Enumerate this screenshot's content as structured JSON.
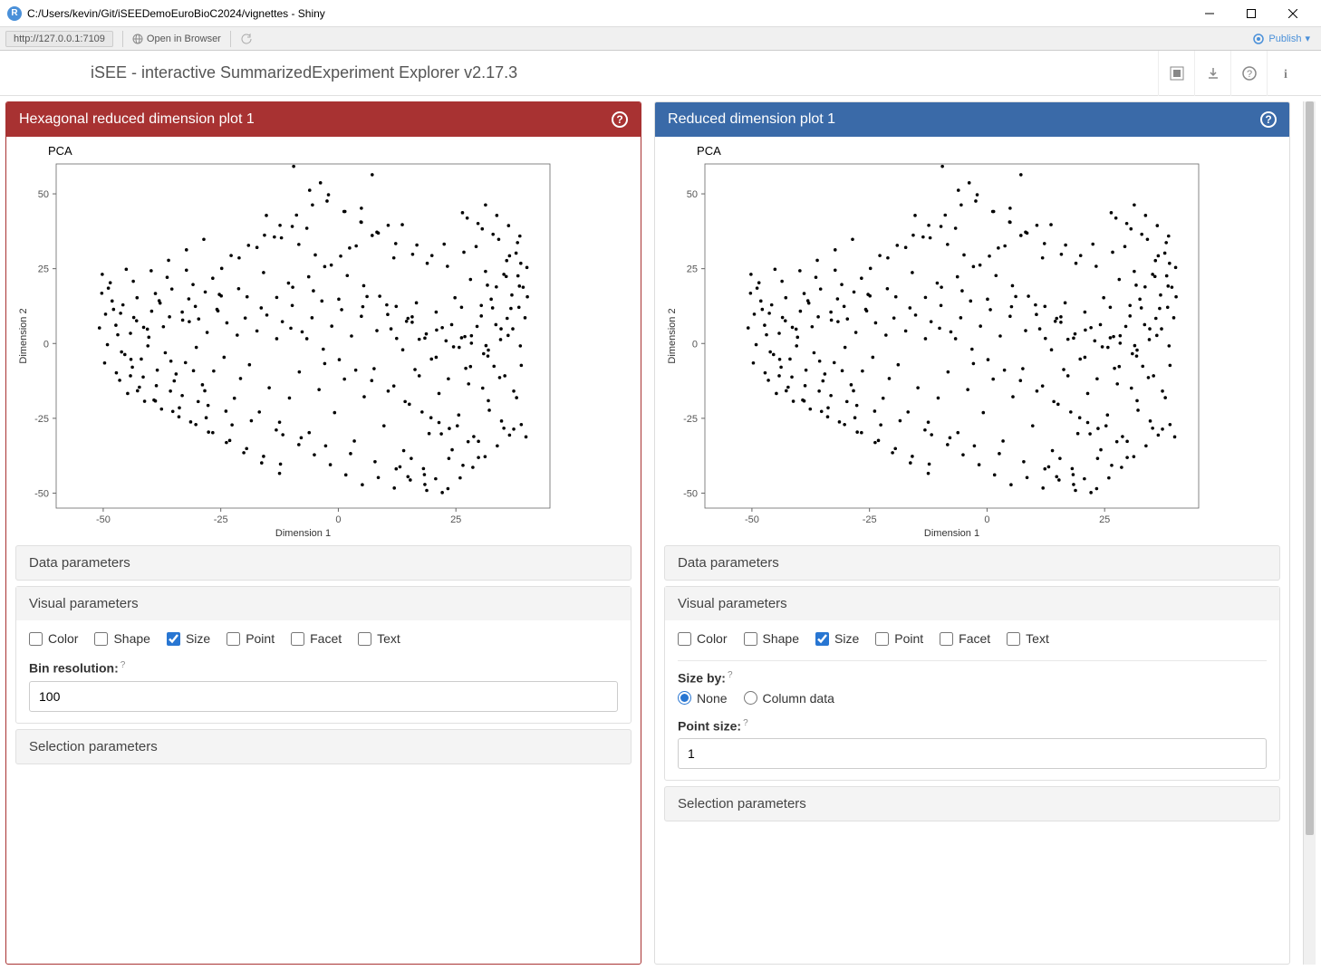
{
  "window": {
    "title": "C:/Users/kevin/Git/iSEEDemoEuroBioC2024/vignettes - Shiny"
  },
  "toolbar": {
    "url": "http://127.0.0.1:7109",
    "open_browser": "Open in Browser",
    "publish": "Publish"
  },
  "header": {
    "app_title": "iSEE - interactive SummarizedExperiment Explorer v2.17.3"
  },
  "panel_left": {
    "title": "Hexagonal reduced dimension plot 1",
    "header_color": "#a83232",
    "plot": {
      "title": "PCA",
      "xlabel": "Dimension 1",
      "ylabel": "Dimension 2",
      "xlim": [
        -60,
        45
      ],
      "ylim": [
        -55,
        60
      ],
      "xticks": [
        -50,
        -25,
        0,
        25
      ],
      "yticks": [
        -50,
        -25,
        0,
        25,
        50
      ],
      "background": "#ffffff",
      "border_color": "#666666",
      "point_color": "#000000",
      "point_radius": 1.8,
      "tick_fontsize": 11,
      "label_fontsize": 11
    },
    "sections": {
      "data_params": "Data parameters",
      "visual_params": "Visual parameters",
      "selection_params": "Selection parameters"
    },
    "visual": {
      "checkboxes": [
        {
          "label": "Color",
          "checked": false
        },
        {
          "label": "Shape",
          "checked": false
        },
        {
          "label": "Size",
          "checked": true
        },
        {
          "label": "Point",
          "checked": false
        },
        {
          "label": "Facet",
          "checked": false
        },
        {
          "label": "Text",
          "checked": false
        }
      ],
      "bin_resolution_label": "Bin resolution:",
      "bin_resolution_value": "100"
    }
  },
  "panel_right": {
    "title": "Reduced dimension plot 1",
    "header_color": "#3a6aa8",
    "plot": {
      "title": "PCA",
      "xlabel": "Dimension 1",
      "ylabel": "Dimension 2",
      "xlim": [
        -60,
        45
      ],
      "ylim": [
        -55,
        60
      ],
      "xticks": [
        -50,
        -25,
        0,
        25
      ],
      "yticks": [
        -50,
        -25,
        0,
        25,
        50
      ],
      "background": "#ffffff",
      "border_color": "#666666",
      "point_color": "#000000",
      "point_radius": 1.8,
      "tick_fontsize": 11,
      "label_fontsize": 11
    },
    "sections": {
      "data_params": "Data parameters",
      "visual_params": "Visual parameters",
      "selection_params": "Selection parameters"
    },
    "visual": {
      "checkboxes": [
        {
          "label": "Color",
          "checked": false
        },
        {
          "label": "Shape",
          "checked": false
        },
        {
          "label": "Size",
          "checked": true
        },
        {
          "label": "Point",
          "checked": false
        },
        {
          "label": "Facet",
          "checked": false
        },
        {
          "label": "Text",
          "checked": false
        }
      ],
      "size_by_label": "Size by:",
      "size_by_options": [
        {
          "label": "None",
          "checked": true
        },
        {
          "label": "Column data",
          "checked": false
        }
      ],
      "point_size_label": "Point size:",
      "point_size_value": "1"
    }
  },
  "scatter_points": [
    [
      -50.2,
      23.1
    ],
    [
      -48.9,
      18.5
    ],
    [
      -49.5,
      9.8
    ],
    [
      -48.1,
      14.2
    ],
    [
      -47.3,
      6.1
    ],
    [
      -45.8,
      12.9
    ],
    [
      -44.2,
      3.4
    ],
    [
      -46.1,
      -2.8
    ],
    [
      -43.5,
      8.7
    ],
    [
      -42.8,
      15.3
    ],
    [
      -41.9,
      -5.2
    ],
    [
      -40.3,
      2.1
    ],
    [
      -39.7,
      10.8
    ],
    [
      -38.5,
      -8.9
    ],
    [
      -37.2,
      5.6
    ],
    [
      -36.8,
      -3.1
    ],
    [
      -35.4,
      18.2
    ],
    [
      -34.9,
      -12.5
    ],
    [
      -33.1,
      7.8
    ],
    [
      -32.5,
      -6.4
    ],
    [
      -31.8,
      14.9
    ],
    [
      -30.2,
      -1.3
    ],
    [
      -29.7,
      8.2
    ],
    [
      -28.4,
      -15.8
    ],
    [
      -27.9,
      3.7
    ],
    [
      -26.5,
      -9.2
    ],
    [
      -25.8,
      11.4
    ],
    [
      -24.3,
      -4.6
    ],
    [
      -23.7,
      6.9
    ],
    [
      -22.1,
      -18.3
    ],
    [
      -21.5,
      2.8
    ],
    [
      -20.8,
      -11.7
    ],
    [
      -19.4,
      15.6
    ],
    [
      -18.9,
      -7.1
    ],
    [
      -17.3,
      4.2
    ],
    [
      -16.8,
      -22.9
    ],
    [
      -15.2,
      9.5
    ],
    [
      -14.7,
      -14.8
    ],
    [
      -13.1,
      1.6
    ],
    [
      -12.5,
      -26.3
    ],
    [
      -11.9,
      7.3
    ],
    [
      -10.4,
      -18.2
    ],
    [
      -9.8,
      12.7
    ],
    [
      -8.3,
      -9.5
    ],
    [
      -7.7,
      3.9
    ],
    [
      -6.2,
      -29.8
    ],
    [
      -5.6,
      8.6
    ],
    [
      -4.1,
      -15.4
    ],
    [
      -3.5,
      14.2
    ],
    [
      -2.9,
      -6.7
    ],
    [
      -1.4,
      5.8
    ],
    [
      -0.8,
      -23.1
    ],
    [
      0.7,
      11.3
    ],
    [
      1.3,
      -11.9
    ],
    [
      2.8,
      2.5
    ],
    [
      3.4,
      -32.6
    ],
    [
      4.9,
      9.1
    ],
    [
      5.5,
      -17.8
    ],
    [
      6.1,
      15.7
    ],
    [
      7.6,
      -8.4
    ],
    [
      8.2,
      4.3
    ],
    [
      9.7,
      -27.5
    ],
    [
      10.3,
      12.9
    ],
    [
      11.8,
      -14.2
    ],
    [
      12.4,
      1.7
    ],
    [
      13.9,
      -35.8
    ],
    [
      14.5,
      7.4
    ],
    [
      15.1,
      -20.3
    ],
    [
      16.6,
      13.6
    ],
    [
      17.2,
      -10.8
    ],
    [
      18.7,
      3.2
    ],
    [
      19.3,
      -30.1
    ],
    [
      20.8,
      10.5
    ],
    [
      21.4,
      -16.7
    ],
    [
      22.9,
      0.9
    ],
    [
      23.5,
      -38.4
    ],
    [
      24.1,
      6.3
    ],
    [
      25.6,
      -23.9
    ],
    [
      26.2,
      12.1
    ],
    [
      27.7,
      -13.5
    ],
    [
      28.3,
      2.6
    ],
    [
      29.8,
      -32.7
    ],
    [
      30.4,
      9.2
    ],
    [
      31.9,
      -19.1
    ],
    [
      32.5,
      14.8
    ],
    [
      33.1,
      -7.6
    ],
    [
      34.6,
      4.9
    ],
    [
      35.2,
      -28.3
    ],
    [
      36.7,
      11.7
    ],
    [
      37.3,
      -15.9
    ],
    [
      -48.5,
      20.3
    ],
    [
      -45.1,
      24.8
    ],
    [
      -42.3,
      -14.6
    ],
    [
      -39.2,
      -18.9
    ],
    [
      -36.4,
      22.1
    ],
    [
      -33.8,
      -21.5
    ],
    [
      -30.9,
      19.7
    ],
    [
      -28.1,
      -24.8
    ],
    [
      -25.3,
      16.4
    ],
    [
      -22.6,
      -27.2
    ],
    [
      -47.2,
      -9.8
    ],
    [
      -44.1,
      -5.3
    ],
    [
      -41.5,
      -11.2
    ],
    [
      -38.9,
      16.7
    ],
    [
      -35.7,
      -15.9
    ],
    [
      -32.3,
      24.5
    ],
    [
      -29.8,
      -19.4
    ],
    [
      -26.7,
      21.8
    ],
    [
      -23.9,
      -22.6
    ],
    [
      -21.2,
      18.3
    ],
    [
      -18.5,
      -25.8
    ],
    [
      -15.9,
      23.7
    ],
    [
      -13.2,
      -28.9
    ],
    [
      -10.6,
      20.2
    ],
    [
      -7.9,
      -31.5
    ],
    [
      -5.3,
      17.6
    ],
    [
      -2.7,
      -34.2
    ],
    [
      0.1,
      14.8
    ],
    [
      2.6,
      -36.8
    ],
    [
      5.2,
      12.3
    ],
    [
      7.8,
      -39.5
    ],
    [
      10.5,
      9.7
    ],
    [
      13.1,
      -41.2
    ],
    [
      15.7,
      7.1
    ],
    [
      18.3,
      -43.8
    ],
    [
      20.9,
      4.5
    ],
    [
      23.6,
      -28.4
    ],
    [
      26.2,
      1.9
    ],
    [
      28.8,
      -31.1
    ],
    [
      31.4,
      -0.7
    ],
    [
      -9.5,
      59.2
    ],
    [
      -3.8,
      53.7
    ],
    [
      7.2,
      56.4
    ],
    [
      -15.3,
      42.8
    ],
    [
      -6.7,
      38.5
    ],
    [
      4.9,
      45.2
    ],
    [
      13.6,
      39.7
    ],
    [
      -12.1,
      35.3
    ],
    [
      2.4,
      31.9
    ],
    [
      11.8,
      28.6
    ],
    [
      22.5,
      33.2
    ],
    [
      18.9,
      26.8
    ],
    [
      26.7,
      30.5
    ],
    [
      31.3,
      24.1
    ],
    [
      35.8,
      27.7
    ],
    [
      28.1,
      21.4
    ],
    [
      33.6,
      18.9
    ],
    [
      38.2,
      22.6
    ],
    [
      24.8,
      15.3
    ],
    [
      30.4,
      12.7
    ],
    [
      36.9,
      16.2
    ],
    [
      19.7,
      -24.8
    ],
    [
      25.3,
      -27.5
    ],
    [
      21.9,
      -30.2
    ],
    [
      27.6,
      -32.8
    ],
    [
      24.2,
      -35.5
    ],
    [
      29.8,
      -38.1
    ],
    [
      26.5,
      -40.7
    ],
    [
      32.1,
      -22.3
    ],
    [
      34.7,
      -25.9
    ],
    [
      37.3,
      -28.6
    ],
    [
      39.9,
      -31.2
    ],
    [
      14.8,
      -44.5
    ],
    [
      18.4,
      -47.1
    ],
    [
      22.1,
      -49.8
    ],
    [
      12.3,
      -41.9
    ],
    [
      31.7,
      19.5
    ],
    [
      35.2,
      23.1
    ],
    [
      38.8,
      26.8
    ],
    [
      29.3,
      32.4
    ],
    [
      -44.8,
      -16.7
    ],
    [
      -41.2,
      -19.3
    ],
    [
      -37.6,
      -21.9
    ],
    [
      -33.9,
      -24.5
    ],
    [
      -30.3,
      -27.1
    ],
    [
      -26.7,
      -29.8
    ],
    [
      -23.1,
      -32.4
    ],
    [
      -19.5,
      -35.1
    ],
    [
      -15.9,
      -37.7
    ],
    [
      -12.3,
      -40.3
    ],
    [
      -50.8,
      5.2
    ],
    [
      -49.1,
      -0.4
    ],
    [
      -46.3,
      10.1
    ],
    [
      -43.8,
      -7.9
    ],
    [
      -40.6,
      4.8
    ],
    [
      -37.9,
      13.5
    ],
    [
      -34.5,
      -10.2
    ],
    [
      -31.7,
      7.3
    ],
    [
      -28.9,
      -13.8
    ],
    [
      -25.6,
      10.9
    ],
    [
      37.8,
      30.2
    ],
    [
      34.1,
      34.8
    ],
    [
      30.6,
      38.3
    ],
    [
      27.4,
      41.9
    ],
    [
      40.2,
      15.6
    ],
    [
      38.5,
      19.2
    ],
    [
      35.9,
      8.4
    ],
    [
      32.8,
      11.9
    ],
    [
      29.5,
      5.7
    ],
    [
      26.9,
      2.3
    ],
    [
      -22.8,
      29.4
    ],
    [
      -19.1,
      32.8
    ],
    [
      -15.7,
      36.2
    ],
    [
      -12.4,
      39.5
    ],
    [
      -8.9,
      42.9
    ],
    [
      -5.5,
      46.3
    ],
    [
      -2.1,
      49.7
    ],
    [
      1.4,
      44.1
    ],
    [
      4.8,
      40.6
    ],
    [
      8.2,
      37.2
    ],
    [
      -50.3,
      16.8
    ],
    [
      -47.8,
      11.4
    ],
    [
      -45.4,
      -3.7
    ],
    [
      -42.9,
      7.6
    ],
    [
      -40.5,
      -0.8
    ],
    [
      -38.1,
      14.3
    ],
    [
      -35.6,
      -5.9
    ],
    [
      -33.2,
      10.5
    ],
    [
      -30.8,
      -9.1
    ],
    [
      -28.3,
      17.2
    ],
    [
      16.3,
      -8.7
    ],
    [
      19.8,
      -5.2
    ],
    [
      23.4,
      -11.8
    ],
    [
      27.1,
      -8.3
    ],
    [
      30.7,
      -14.9
    ],
    [
      34.3,
      -11.4
    ],
    [
      37.9,
      -18.1
    ],
    [
      13.7,
      -2.1
    ],
    [
      17.2,
      1.4
    ],
    [
      20.8,
      -4.6
    ],
    [
      24.5,
      -1.1
    ],
    [
      28.1,
      -7.7
    ],
    [
      31.8,
      -4.2
    ],
    [
      35.4,
      -10.8
    ],
    [
      38.9,
      -7.3
    ],
    [
      11.2,
      4.9
    ],
    [
      14.8,
      8.4
    ],
    [
      18.4,
      1.8
    ],
    [
      22.1,
      5.3
    ],
    [
      25.7,
      -1.3
    ],
    [
      -49.7,
      -6.5
    ],
    [
      -46.9,
      2.9
    ],
    [
      -44.2,
      -10.8
    ],
    [
      -41.4,
      5.4
    ],
    [
      -38.7,
      -14.1
    ],
    [
      -35.9,
      8.9
    ],
    [
      -33.2,
      -17.4
    ],
    [
      -30.4,
      12.4
    ],
    [
      -27.7,
      -20.7
    ],
    [
      -24.9,
      15.9
    ],
    [
      3.7,
      -8.9
    ],
    [
      7.1,
      -12.4
    ],
    [
      10.6,
      -15.9
    ],
    [
      14.2,
      -19.4
    ],
    [
      17.8,
      -22.9
    ],
    [
      21.4,
      -26.4
    ],
    [
      0.2,
      -5.4
    ],
    [
      -3.2,
      -1.9
    ],
    [
      -6.7,
      1.6
    ],
    [
      -10.1,
      5.1
    ],
    [
      38.1,
      33.7
    ],
    [
      36.4,
      29.3
    ],
    [
      32.9,
      36.5
    ],
    [
      29.7,
      40.1
    ],
    [
      26.4,
      43.7
    ],
    [
      23.2,
      25.8
    ],
    [
      19.9,
      29.4
    ],
    [
      16.7,
      32.9
    ],
    [
      35.7,
      22.4
    ],
    [
      39.3,
      18.8
    ],
    [
      -11.8,
      -30.5
    ],
    [
      -8.4,
      -33.8
    ],
    [
      -5.1,
      -37.2
    ],
    [
      -1.7,
      -40.5
    ],
    [
      1.6,
      -43.9
    ],
    [
      5.1,
      -47.2
    ],
    [
      8.5,
      -44.8
    ],
    [
      11.9,
      -48.3
    ],
    [
      15.3,
      -45.6
    ],
    [
      18.8,
      -49.1
    ],
    [
      33.8,
      -34.2
    ],
    [
      31.2,
      -37.8
    ],
    [
      28.6,
      -41.4
    ],
    [
      36.4,
      -30.6
    ],
    [
      38.9,
      -27.1
    ],
    [
      25.9,
      -44.9
    ],
    [
      23.3,
      -48.5
    ],
    [
      20.7,
      -45.2
    ],
    [
      18.1,
      -41.8
    ],
    [
      15.5,
      -38.4
    ],
    [
      -43.6,
      20.8
    ],
    [
      -39.8,
      24.3
    ],
    [
      -36.1,
      27.8
    ],
    [
      -32.3,
      31.3
    ],
    [
      -28.6,
      34.8
    ],
    [
      -24.8,
      25.1
    ],
    [
      -21.1,
      28.6
    ],
    [
      -17.3,
      32.1
    ],
    [
      -13.6,
      35.6
    ],
    [
      -9.8,
      39.1
    ],
    [
      1.9,
      22.7
    ],
    [
      5.4,
      19.3
    ],
    [
      8.8,
      15.8
    ],
    [
      12.3,
      12.4
    ],
    [
      15.7,
      8.9
    ],
    [
      -1.5,
      26.2
    ],
    [
      -4.9,
      29.6
    ],
    [
      -8.4,
      33.1
    ],
    [
      38.7,
      -0.8
    ],
    [
      36.1,
      2.7
    ],
    [
      33.5,
      6.3
    ],
    [
      30.9,
      -3.4
    ],
    [
      28.3,
      0.1
    ],
    [
      -6.1,
      51.2
    ],
    [
      -2.4,
      47.6
    ],
    [
      1.2,
      44.1
    ],
    [
      4.9,
      40.5
    ],
    [
      8.5,
      36.9
    ],
    [
      12.2,
      33.4
    ],
    [
      15.8,
      29.8
    ],
    [
      38.4,
      12.1
    ],
    [
      39.7,
      8.6
    ],
    [
      37.1,
      4.9
    ],
    [
      34.5,
      1.3
    ],
    [
      31.9,
      -2.2
    ],
    [
      40.1,
      25.4
    ],
    [
      38.6,
      35.9
    ],
    [
      36.2,
      39.4
    ],
    [
      33.7,
      42.8
    ],
    [
      31.3,
      46.3
    ],
    [
      -19.8,
      8.5
    ],
    [
      -16.4,
      11.9
    ],
    [
      -13.1,
      15.4
    ],
    [
      -9.7,
      18.8
    ],
    [
      -6.3,
      22.3
    ],
    [
      -2.9,
      25.7
    ],
    [
      0.5,
      29.2
    ],
    [
      3.8,
      32.6
    ],
    [
      7.2,
      36.1
    ],
    [
      10.6,
      39.5
    ],
    [
      -46.5,
      -12.3
    ],
    [
      -42.7,
      -15.8
    ],
    [
      -38.9,
      -19.2
    ],
    [
      -35.2,
      -22.7
    ],
    [
      -31.4,
      -26.2
    ],
    [
      -27.6,
      -29.6
    ],
    [
      -23.8,
      -33.1
    ],
    [
      -20.1,
      -36.5
    ],
    [
      -16.3,
      -39.9
    ],
    [
      -12.5,
      -43.4
    ]
  ]
}
